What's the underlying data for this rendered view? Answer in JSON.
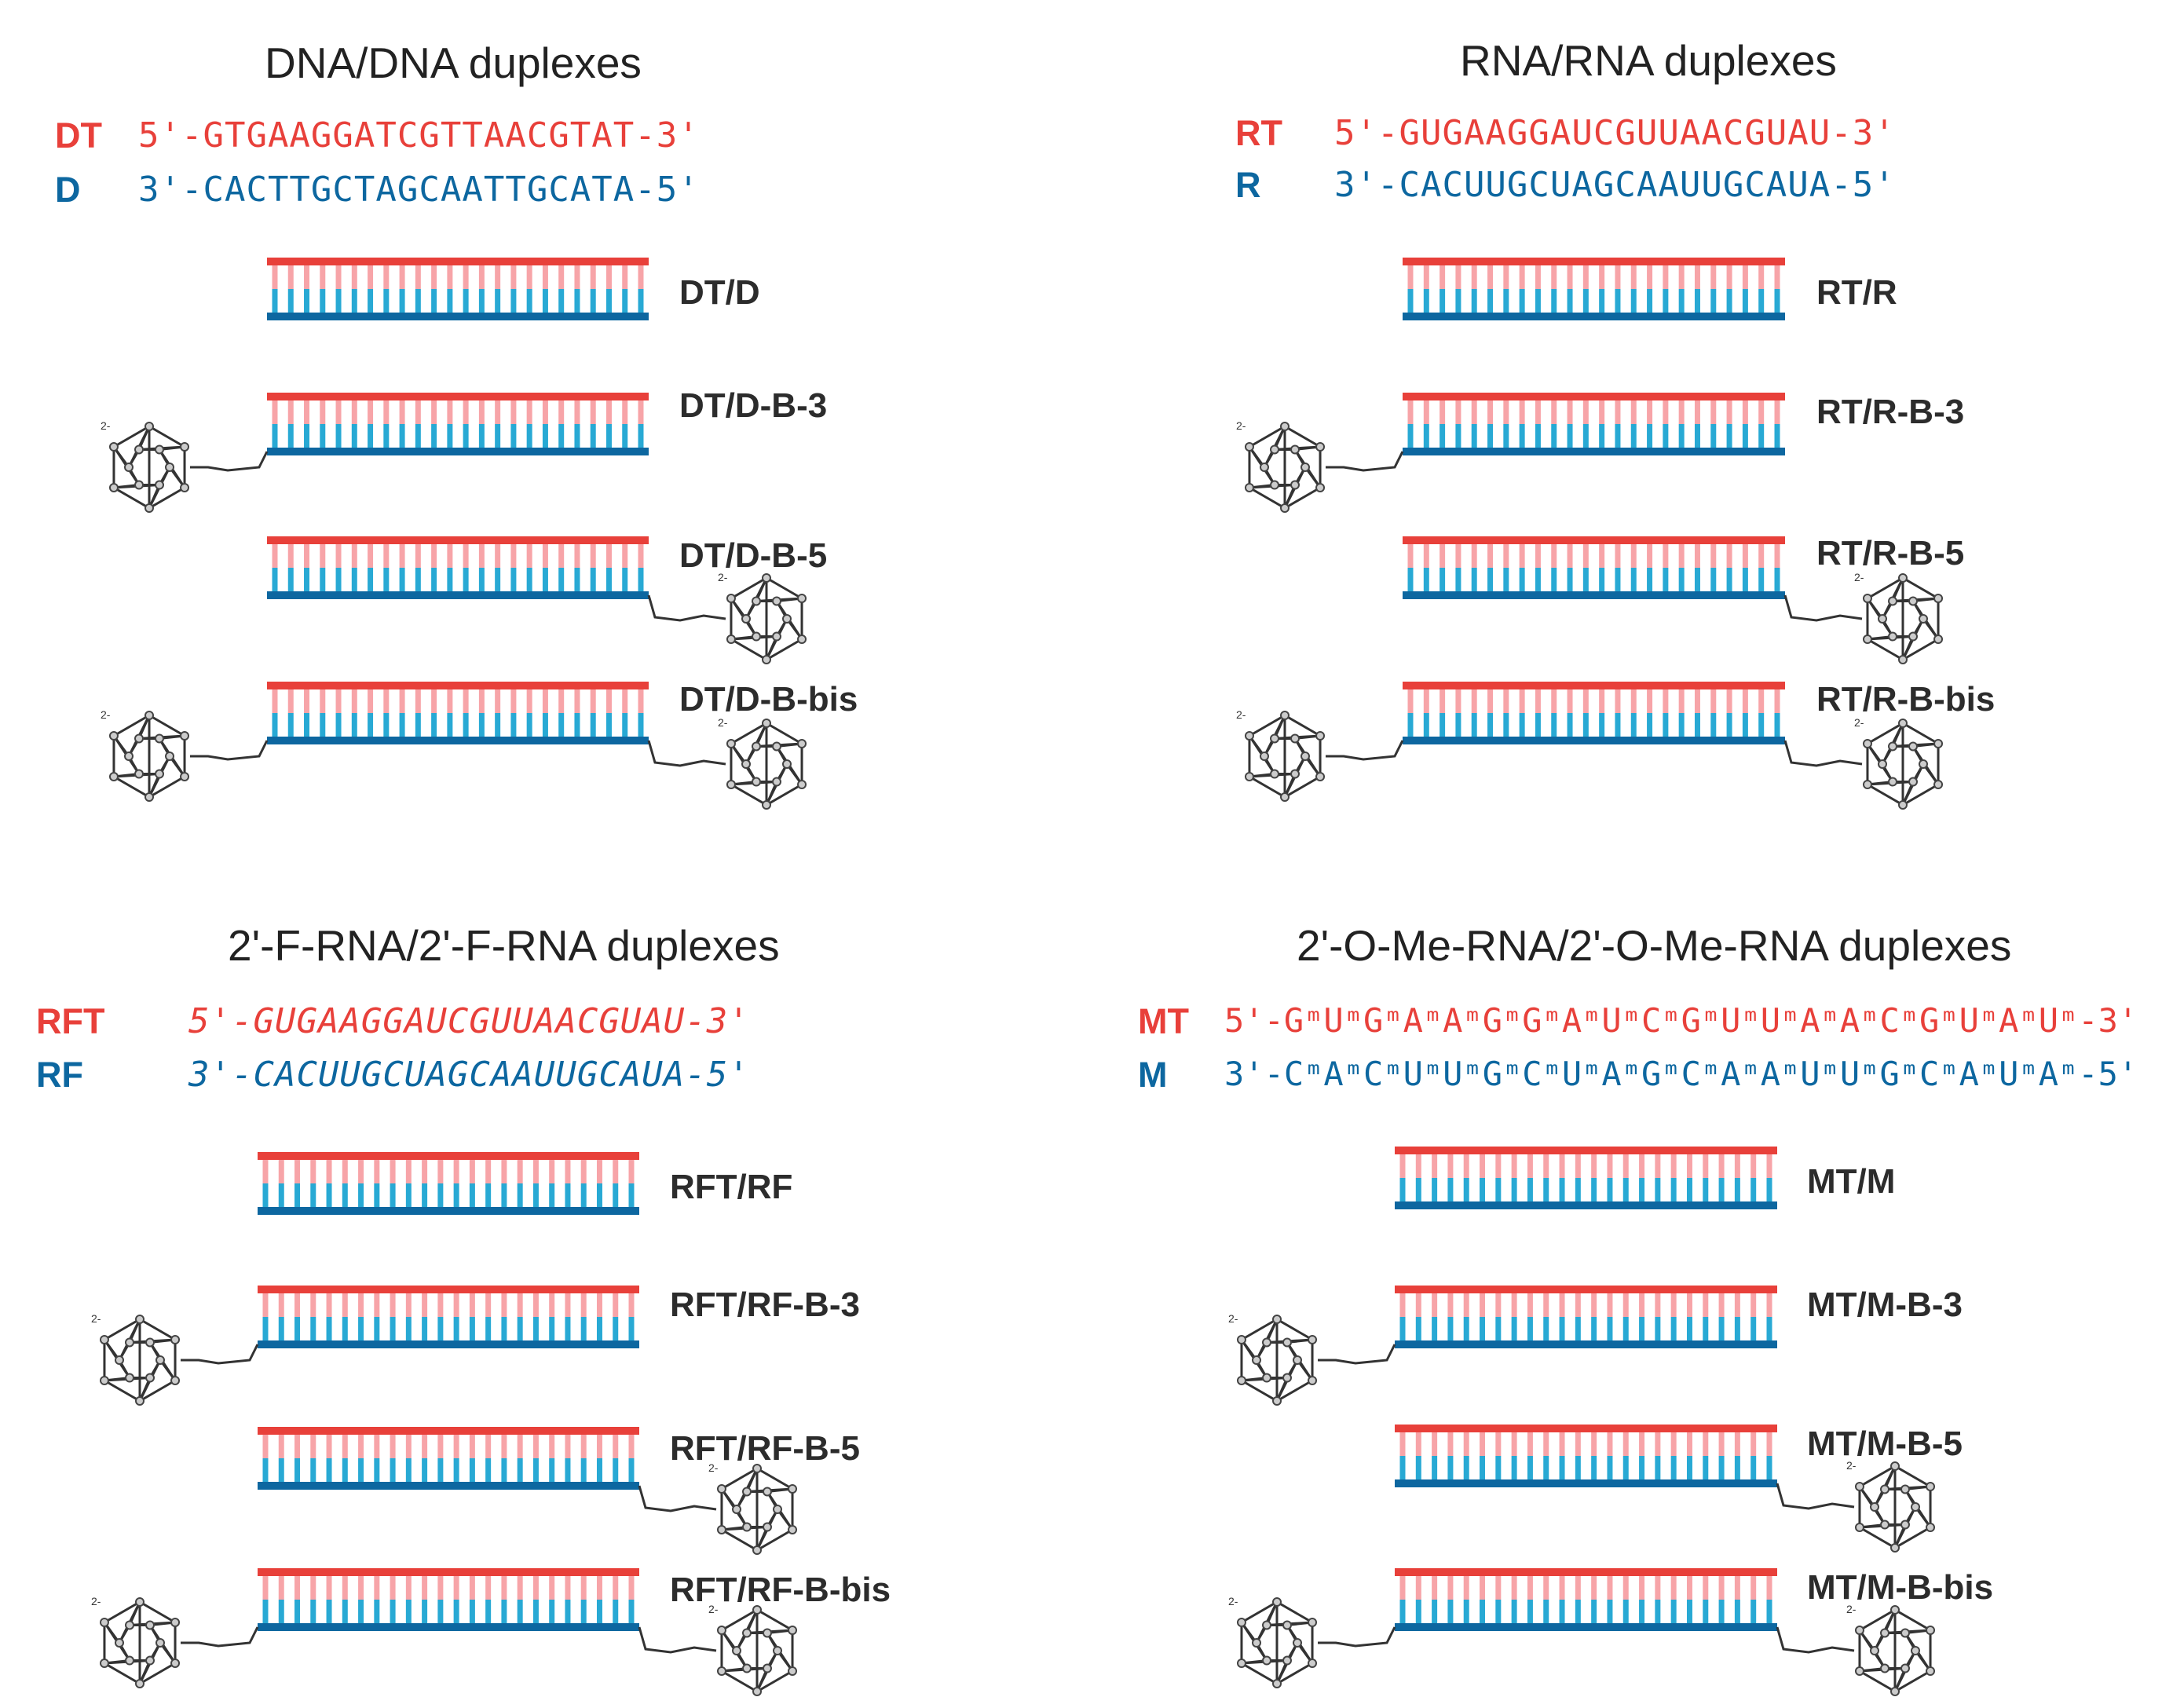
{
  "colors": {
    "top_strand": "#e8403a",
    "bottom_strand": "#0d67a0",
    "top_pair": "#f7a4a8",
    "bottom_pair": "#28a9d4",
    "text": "#2c2c2c"
  },
  "icons": {
    "cage": "closo-dodecaborate-cage-icon"
  },
  "cage_charge": "2-",
  "panels": [
    {
      "title": "DNA/DNA duplexes",
      "top_name": "DT",
      "top_seq": "5'-GTGAAGGATCGTTAACGTAT-3'",
      "bottom_name": "D",
      "bottom_seq": "3'-CACTTGCTAGCAATTGCATA-5'",
      "duplexes": [
        {
          "label": "DT/D",
          "conjugate": "none"
        },
        {
          "label": "DT/D-B-3",
          "conjugate": "3'"
        },
        {
          "label": "DT/D-B-5",
          "conjugate": "5'"
        },
        {
          "label": "DT/D-B-bis",
          "conjugate": "both"
        }
      ]
    },
    {
      "title": "RNA/RNA duplexes",
      "top_name": "RT",
      "top_seq": "5'-GUGAAGGAUCGUUAACGUAU-3'",
      "bottom_name": "R",
      "bottom_seq": "3'-CACUUGCUAGCAAUUGCAUA-5'",
      "duplexes": [
        {
          "label": "RT/R",
          "conjugate": "none"
        },
        {
          "label": "RT/R-B-3",
          "conjugate": "3'"
        },
        {
          "label": "RT/R-B-5",
          "conjugate": "5'"
        },
        {
          "label": "RT/R-B-bis",
          "conjugate": "both"
        }
      ]
    },
    {
      "title": "2'-F-RNA/2'-F-RNA duplexes",
      "top_name": "RFT",
      "top_seq": "5'-GUGAAGGAUCGUUAACGUAU-3'",
      "bottom_name": "RF",
      "bottom_seq": "3'-CACUUGCUAGCAAUUGCAUA-5'",
      "duplexes": [
        {
          "label": "RFT/RF",
          "conjugate": "none"
        },
        {
          "label": "RFT/RF-B-3",
          "conjugate": "3'"
        },
        {
          "label": "RFT/RF-B-5",
          "conjugate": "5'"
        },
        {
          "label": "RFT/RF-B-bis",
          "conjugate": "both"
        }
      ]
    },
    {
      "title": "2'-O-Me-RNA/2'-O-Me-RNA duplexes",
      "top_name": "MT",
      "top_seq": "5'-GᵐUᵐGᵐAᵐAᵐGᵐGᵐAᵐUᵐCᵐGᵐUᵐUᵐAᵐAᵐCᵐGᵐUᵐAᵐUᵐ-3'",
      "bottom_name": "M",
      "bottom_seq": "3'-CᵐAᵐCᵐUᵐUᵐGᵐCᵐUᵐAᵐGᵐCᵐAᵐAᵐUᵐUᵐGᵐCᵐAᵐUᵐAᵐ-5'",
      "duplexes": [
        {
          "label": "MT/M",
          "conjugate": "none"
        },
        {
          "label": "MT/M-B-3",
          "conjugate": "3'"
        },
        {
          "label": "MT/M-B-5",
          "conjugate": "5'"
        },
        {
          "label": "MT/M-B-bis",
          "conjugate": "both"
        }
      ]
    }
  ]
}
